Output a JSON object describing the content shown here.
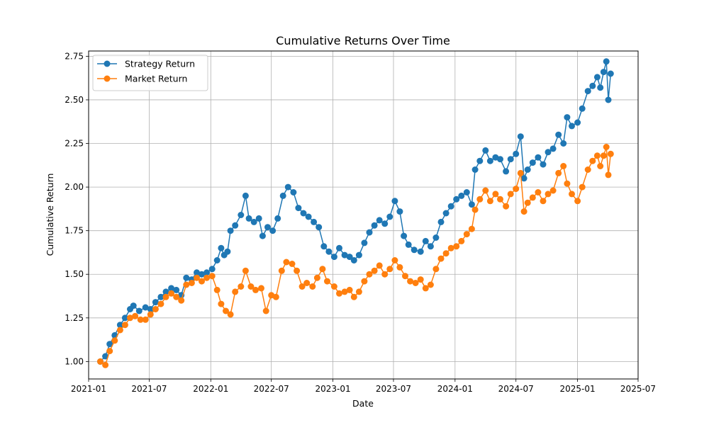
{
  "chart_data": {
    "type": "line",
    "title": "Cumulative Returns Over Time",
    "xlabel": "Date",
    "ylabel": "Cumulative Return",
    "xlim": [
      "2021-01-01",
      "2025-07-01"
    ],
    "ylim": [
      0.9,
      2.78
    ],
    "x_ticks": [
      "2021-01",
      "2021-07",
      "2022-01",
      "2022-07",
      "2023-01",
      "2023-07",
      "2024-01",
      "2024-07",
      "2025-01",
      "2025-07"
    ],
    "y_ticks": [
      "1.00",
      "1.25",
      "1.50",
      "1.75",
      "2.00",
      "2.25",
      "2.50",
      "2.75"
    ],
    "grid": true,
    "legend_position": "top-left",
    "marker": "circle",
    "series": [
      {
        "name": "Strategy Return",
        "color": "#1f77b4",
        "points": [
          [
            "2021-02-05",
            1.0
          ],
          [
            "2021-02-20",
            1.03
          ],
          [
            "2021-03-05",
            1.1
          ],
          [
            "2021-03-20",
            1.15
          ],
          [
            "2021-04-05",
            1.21
          ],
          [
            "2021-04-20",
            1.25
          ],
          [
            "2021-05-05",
            1.3
          ],
          [
            "2021-05-15",
            1.32
          ],
          [
            "2021-06-01",
            1.29
          ],
          [
            "2021-06-20",
            1.31
          ],
          [
            "2021-07-05",
            1.3
          ],
          [
            "2021-07-20",
            1.34
          ],
          [
            "2021-08-05",
            1.37
          ],
          [
            "2021-08-20",
            1.4
          ],
          [
            "2021-09-05",
            1.42
          ],
          [
            "2021-09-20",
            1.41
          ],
          [
            "2021-10-05",
            1.38
          ],
          [
            "2021-10-20",
            1.48
          ],
          [
            "2021-11-05",
            1.47
          ],
          [
            "2021-11-20",
            1.51
          ],
          [
            "2021-12-05",
            1.5
          ],
          [
            "2021-12-20",
            1.51
          ],
          [
            "2022-01-05",
            1.53
          ],
          [
            "2022-01-20",
            1.58
          ],
          [
            "2022-02-01",
            1.65
          ],
          [
            "2022-02-10",
            1.61
          ],
          [
            "2022-02-20",
            1.63
          ],
          [
            "2022-03-01",
            1.75
          ],
          [
            "2022-03-15",
            1.78
          ],
          [
            "2022-04-01",
            1.84
          ],
          [
            "2022-04-15",
            1.95
          ],
          [
            "2022-04-25",
            1.82
          ],
          [
            "2022-05-10",
            1.8
          ],
          [
            "2022-05-25",
            1.82
          ],
          [
            "2022-06-05",
            1.72
          ],
          [
            "2022-06-20",
            1.77
          ],
          [
            "2022-07-05",
            1.75
          ],
          [
            "2022-07-20",
            1.82
          ],
          [
            "2022-08-05",
            1.95
          ],
          [
            "2022-08-20",
            2.0
          ],
          [
            "2022-09-05",
            1.97
          ],
          [
            "2022-09-20",
            1.88
          ],
          [
            "2022-10-05",
            1.85
          ],
          [
            "2022-10-20",
            1.83
          ],
          [
            "2022-11-05",
            1.8
          ],
          [
            "2022-11-20",
            1.77
          ],
          [
            "2022-12-05",
            1.66
          ],
          [
            "2022-12-20",
            1.63
          ],
          [
            "2023-01-05",
            1.6
          ],
          [
            "2023-01-20",
            1.65
          ],
          [
            "2023-02-05",
            1.61
          ],
          [
            "2023-02-20",
            1.6
          ],
          [
            "2023-03-05",
            1.58
          ],
          [
            "2023-03-20",
            1.61
          ],
          [
            "2023-04-05",
            1.68
          ],
          [
            "2023-04-20",
            1.74
          ],
          [
            "2023-05-05",
            1.78
          ],
          [
            "2023-05-20",
            1.81
          ],
          [
            "2023-06-05",
            1.79
          ],
          [
            "2023-06-20",
            1.83
          ],
          [
            "2023-07-05",
            1.92
          ],
          [
            "2023-07-20",
            1.86
          ],
          [
            "2023-08-01",
            1.72
          ],
          [
            "2023-08-15",
            1.67
          ],
          [
            "2023-09-01",
            1.64
          ],
          [
            "2023-09-20",
            1.63
          ],
          [
            "2023-10-05",
            1.69
          ],
          [
            "2023-10-20",
            1.66
          ],
          [
            "2023-11-05",
            1.71
          ],
          [
            "2023-11-20",
            1.8
          ],
          [
            "2023-12-05",
            1.85
          ],
          [
            "2023-12-20",
            1.89
          ],
          [
            "2024-01-05",
            1.93
          ],
          [
            "2024-01-20",
            1.95
          ],
          [
            "2024-02-05",
            1.97
          ],
          [
            "2024-02-20",
            1.9
          ],
          [
            "2024-03-01",
            2.1
          ],
          [
            "2024-03-15",
            2.15
          ],
          [
            "2024-04-01",
            2.21
          ],
          [
            "2024-04-15",
            2.15
          ],
          [
            "2024-05-01",
            2.17
          ],
          [
            "2024-05-15",
            2.16
          ],
          [
            "2024-06-01",
            2.09
          ],
          [
            "2024-06-15",
            2.16
          ],
          [
            "2024-07-01",
            2.19
          ],
          [
            "2024-07-15",
            2.29
          ],
          [
            "2024-07-25",
            2.05
          ],
          [
            "2024-08-05",
            2.1
          ],
          [
            "2024-08-20",
            2.14
          ],
          [
            "2024-09-05",
            2.17
          ],
          [
            "2024-09-20",
            2.13
          ],
          [
            "2024-10-05",
            2.2
          ],
          [
            "2024-10-20",
            2.22
          ],
          [
            "2024-11-05",
            2.3
          ],
          [
            "2024-11-20",
            2.25
          ],
          [
            "2024-12-01",
            2.4
          ],
          [
            "2024-12-15",
            2.35
          ],
          [
            "2025-01-01",
            2.37
          ],
          [
            "2025-01-15",
            2.45
          ],
          [
            "2025-02-01",
            2.55
          ],
          [
            "2025-02-15",
            2.58
          ],
          [
            "2025-03-01",
            2.63
          ],
          [
            "2025-03-10",
            2.57
          ],
          [
            "2025-03-20",
            2.66
          ],
          [
            "2025-03-28",
            2.72
          ],
          [
            "2025-04-03",
            2.5
          ],
          [
            "2025-04-10",
            2.65
          ]
        ]
      },
      {
        "name": "Market Return",
        "color": "#ff7f0e",
        "points": [
          [
            "2021-02-05",
            1.0
          ],
          [
            "2021-02-20",
            0.98
          ],
          [
            "2021-03-05",
            1.06
          ],
          [
            "2021-03-20",
            1.12
          ],
          [
            "2021-04-05",
            1.18
          ],
          [
            "2021-04-20",
            1.21
          ],
          [
            "2021-05-05",
            1.25
          ],
          [
            "2021-05-20",
            1.26
          ],
          [
            "2021-06-05",
            1.24
          ],
          [
            "2021-06-20",
            1.24
          ],
          [
            "2021-07-05",
            1.27
          ],
          [
            "2021-07-20",
            1.3
          ],
          [
            "2021-08-05",
            1.33
          ],
          [
            "2021-08-20",
            1.37
          ],
          [
            "2021-09-05",
            1.39
          ],
          [
            "2021-09-20",
            1.37
          ],
          [
            "2021-10-05",
            1.35
          ],
          [
            "2021-10-20",
            1.44
          ],
          [
            "2021-11-05",
            1.45
          ],
          [
            "2021-11-20",
            1.48
          ],
          [
            "2021-12-05",
            1.46
          ],
          [
            "2021-12-20",
            1.48
          ],
          [
            "2022-01-05",
            1.49
          ],
          [
            "2022-01-20",
            1.41
          ],
          [
            "2022-02-01",
            1.33
          ],
          [
            "2022-02-15",
            1.29
          ],
          [
            "2022-03-01",
            1.27
          ],
          [
            "2022-03-15",
            1.4
          ],
          [
            "2022-04-01",
            1.43
          ],
          [
            "2022-04-15",
            1.52
          ],
          [
            "2022-05-01",
            1.43
          ],
          [
            "2022-05-15",
            1.41
          ],
          [
            "2022-06-01",
            1.42
          ],
          [
            "2022-06-15",
            1.29
          ],
          [
            "2022-07-01",
            1.38
          ],
          [
            "2022-07-15",
            1.37
          ],
          [
            "2022-08-01",
            1.52
          ],
          [
            "2022-08-15",
            1.57
          ],
          [
            "2022-09-01",
            1.56
          ],
          [
            "2022-09-15",
            1.52
          ],
          [
            "2022-10-01",
            1.43
          ],
          [
            "2022-10-15",
            1.45
          ],
          [
            "2022-11-01",
            1.43
          ],
          [
            "2022-11-15",
            1.48
          ],
          [
            "2022-12-01",
            1.53
          ],
          [
            "2022-12-15",
            1.46
          ],
          [
            "2023-01-05",
            1.43
          ],
          [
            "2023-01-20",
            1.39
          ],
          [
            "2023-02-05",
            1.4
          ],
          [
            "2023-02-20",
            1.41
          ],
          [
            "2023-03-05",
            1.37
          ],
          [
            "2023-03-20",
            1.4
          ],
          [
            "2023-04-05",
            1.46
          ],
          [
            "2023-04-20",
            1.5
          ],
          [
            "2023-05-05",
            1.52
          ],
          [
            "2023-05-20",
            1.55
          ],
          [
            "2023-06-05",
            1.5
          ],
          [
            "2023-06-20",
            1.53
          ],
          [
            "2023-07-05",
            1.58
          ],
          [
            "2023-07-20",
            1.54
          ],
          [
            "2023-08-05",
            1.49
          ],
          [
            "2023-08-20",
            1.46
          ],
          [
            "2023-09-05",
            1.45
          ],
          [
            "2023-09-20",
            1.47
          ],
          [
            "2023-10-05",
            1.42
          ],
          [
            "2023-10-20",
            1.44
          ],
          [
            "2023-11-05",
            1.53
          ],
          [
            "2023-11-20",
            1.59
          ],
          [
            "2023-12-05",
            1.62
          ],
          [
            "2023-12-20",
            1.65
          ],
          [
            "2024-01-05",
            1.66
          ],
          [
            "2024-01-20",
            1.69
          ],
          [
            "2024-02-05",
            1.73
          ],
          [
            "2024-02-20",
            1.76
          ],
          [
            "2024-03-01",
            1.87
          ],
          [
            "2024-03-15",
            1.93
          ],
          [
            "2024-04-01",
            1.98
          ],
          [
            "2024-04-15",
            1.92
          ],
          [
            "2024-05-01",
            1.96
          ],
          [
            "2024-05-15",
            1.93
          ],
          [
            "2024-06-01",
            1.89
          ],
          [
            "2024-06-15",
            1.96
          ],
          [
            "2024-07-01",
            1.99
          ],
          [
            "2024-07-15",
            2.08
          ],
          [
            "2024-07-25",
            1.86
          ],
          [
            "2024-08-05",
            1.91
          ],
          [
            "2024-08-20",
            1.94
          ],
          [
            "2024-09-05",
            1.97
          ],
          [
            "2024-09-20",
            1.92
          ],
          [
            "2024-10-05",
            1.96
          ],
          [
            "2024-10-20",
            1.98
          ],
          [
            "2024-11-05",
            2.08
          ],
          [
            "2024-11-20",
            2.12
          ],
          [
            "2024-12-01",
            2.02
          ],
          [
            "2024-12-15",
            1.96
          ],
          [
            "2025-01-01",
            1.92
          ],
          [
            "2025-01-15",
            2.0
          ],
          [
            "2025-02-01",
            2.1
          ],
          [
            "2025-02-15",
            2.15
          ],
          [
            "2025-03-01",
            2.18
          ],
          [
            "2025-03-10",
            2.12
          ],
          [
            "2025-03-20",
            2.18
          ],
          [
            "2025-03-28",
            2.23
          ],
          [
            "2025-04-03",
            2.07
          ],
          [
            "2025-04-10",
            2.19
          ]
        ]
      }
    ]
  }
}
